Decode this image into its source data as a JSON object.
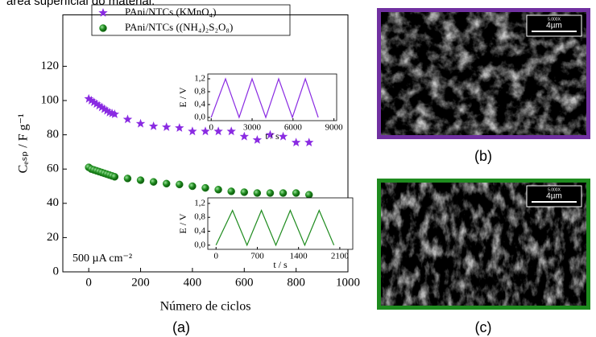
{
  "caption": "área superficial do material.",
  "panel_labels": [
    "(a)",
    "(b)",
    "(c)"
  ],
  "images": [
    {
      "magnification": "5.000X",
      "scale": "4µm"
    },
    {
      "magnification": "5.000X",
      "scale": "4µm"
    }
  ],
  "chart_data": {
    "type": "scatter",
    "xlabel": "Número de ciclos",
    "ylabel": "Cₑₛₚ / F g⁻¹",
    "annotation": "500 µA cm⁻²",
    "xlim": [
      -100,
      1000
    ],
    "ylim": [
      0,
      150
    ],
    "xticks": [
      0,
      200,
      400,
      600,
      800,
      1000
    ],
    "yticks": [
      0,
      20,
      40,
      60,
      80,
      100,
      120
    ],
    "legend": "top",
    "series": [
      {
        "name": "PAni/NTCs (KMnO₄)",
        "color": "#8a2be2",
        "marker": "star",
        "x": [
          0,
          10,
          20,
          30,
          40,
          50,
          60,
          70,
          80,
          90,
          100,
          150,
          200,
          250,
          300,
          350,
          400,
          450,
          500,
          550,
          600,
          650,
          700,
          750,
          800,
          850
        ],
        "values": [
          101,
          100,
          99,
          98,
          97,
          96,
          95,
          94,
          93,
          92.5,
          92,
          89,
          86.5,
          85,
          84.5,
          84,
          82,
          82,
          82,
          82,
          79,
          77,
          80,
          79,
          75.5,
          75.5
        ]
      },
      {
        "name": "PAni/NTCs ((NH₄)₂S₂O₈)",
        "color": "#1e8b1e",
        "marker": "circle",
        "x": [
          0,
          10,
          20,
          30,
          40,
          50,
          60,
          70,
          80,
          90,
          100,
          150,
          200,
          250,
          300,
          350,
          400,
          450,
          500,
          550,
          600,
          650,
          700,
          750,
          800,
          850
        ],
        "values": [
          61,
          60,
          59.5,
          59,
          58.5,
          58,
          57.5,
          57,
          56.5,
          56,
          55.5,
          54.5,
          53.5,
          52.5,
          51.5,
          51,
          50,
          49,
          48,
          47,
          46.5,
          46,
          46,
          46,
          46,
          45
        ]
      }
    ],
    "insets": [
      {
        "xlabel": "t / s",
        "ylabel": "E / V",
        "color": "#8a2be2",
        "xlim": [
          -250,
          9200
        ],
        "ylim": [
          -0.1,
          1.35
        ],
        "xticks": [
          0,
          3000,
          6000,
          9000
        ],
        "yticks": [
          {
            "value": 0,
            "label": "0,0"
          },
          {
            "value": 0.4,
            "label": "0,4"
          },
          {
            "value": 0.8,
            "label": "0,8"
          },
          {
            "value": 1.2,
            "label": "1,2"
          }
        ],
        "x": [
          0,
          1050,
          2050,
          3000,
          4000,
          4950,
          5950,
          6900,
          7850
        ],
        "values": [
          0,
          1.2,
          0,
          1.2,
          0,
          1.2,
          0,
          1.2,
          0
        ]
      },
      {
        "xlabel": "t / s",
        "ylabel": "E / V",
        "color": "#1e8b1e",
        "xlim": [
          -140,
          2320
        ],
        "ylim": [
          -0.12,
          1.36
        ],
        "xticks": [
          0,
          700,
          1400,
          2100
        ],
        "yticks": [
          {
            "value": 0,
            "label": "0,0"
          },
          {
            "value": 0.4,
            "label": "0,4"
          },
          {
            "value": 0.8,
            "label": "0,8"
          },
          {
            "value": 1.2,
            "label": "1,2"
          }
        ],
        "x": [
          0,
          280,
          525,
          770,
          1015,
          1260,
          1505,
          1750,
          2000
        ],
        "values": [
          0,
          1.0,
          0,
          1.0,
          0,
          1.0,
          0,
          1.0,
          0
        ]
      }
    ]
  }
}
